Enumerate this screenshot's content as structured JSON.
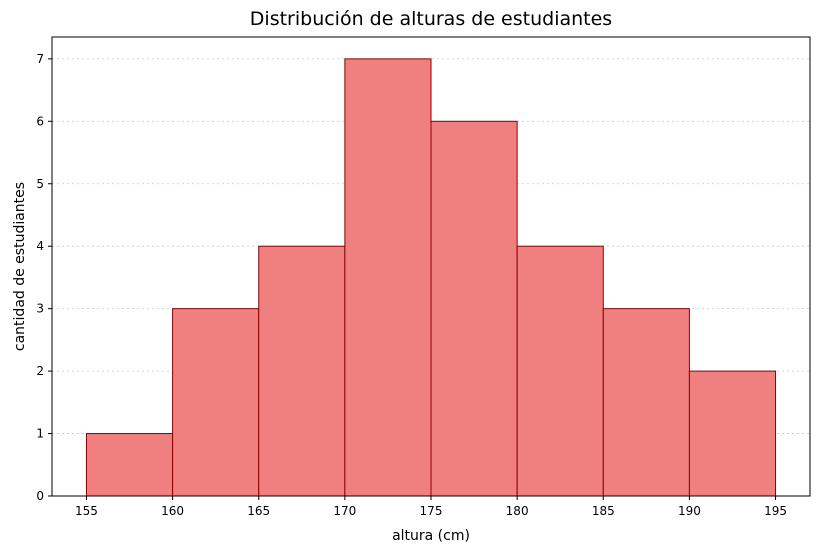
{
  "chart_data": {
    "type": "bar",
    "title": "Distribución de alturas de estudiantes",
    "xlabel": "altura (cm)",
    "ylabel": "cantidad de estudiantes",
    "bins": [
      {
        "start": 155,
        "end": 160,
        "value": 1
      },
      {
        "start": 160,
        "end": 165,
        "value": 3
      },
      {
        "start": 165,
        "end": 170,
        "value": 4
      },
      {
        "start": 170,
        "end": 175,
        "value": 7
      },
      {
        "start": 175,
        "end": 180,
        "value": 6
      },
      {
        "start": 180,
        "end": 185,
        "value": 4
      },
      {
        "start": 185,
        "end": 190,
        "value": 3
      },
      {
        "start": 190,
        "end": 195,
        "value": 2
      }
    ],
    "xlim": [
      153,
      197
    ],
    "ylim": [
      0,
      7.35
    ],
    "xticks": [
      "155",
      "160",
      "165",
      "170",
      "175",
      "180",
      "185",
      "190",
      "195"
    ],
    "yticks": [
      "0",
      "1",
      "2",
      "3",
      "4",
      "5",
      "6",
      "7"
    ],
    "grid": "y-dotted",
    "colors": {
      "bar_fill": "#f08080",
      "bar_edge": "#8b0000",
      "grid": "#c8c8c8"
    }
  }
}
